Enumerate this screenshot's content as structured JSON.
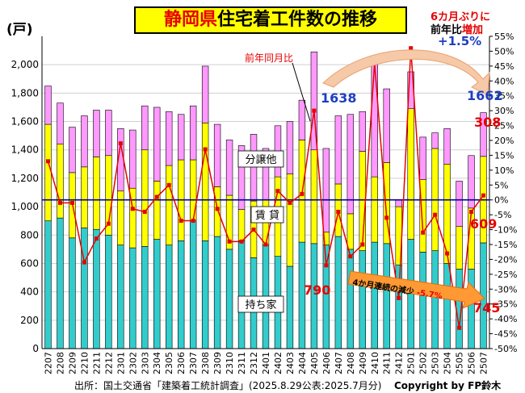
{
  "title": {
    "part1": "静岡県",
    "part2": "住宅着工件数の推移"
  },
  "unit_label": "(戸)",
  "callouts": {
    "six_month_line1": "6カ月ぶりに",
    "six_month_line2a": "前年比",
    "six_month_line2b": "増加",
    "six_month_pct": "+1.5%",
    "yoy_label": "前年同月比",
    "decline_label": "4か月連続の減少 ",
    "decline_pct": "-5.7%",
    "val_1638": "1638",
    "val_1662": "1662",
    "val_308": "308",
    "val_609": "609",
    "val_790": "790",
    "val_745": "745"
  },
  "source": "出所：国土交通省「建築着工統計調査」(2025.8.29公表:2025.7月分)",
  "copyright": "Copyright by FP鈴木",
  "colors": {
    "owned": "#33cccc",
    "rental": "#ffff00",
    "sale": "#ff99ff",
    "yoy_line": "#e60000",
    "zero_line": "#000099"
  },
  "chart_data": {
    "type": "bar",
    "stacked": true,
    "categories": [
      "2207",
      "2208",
      "2209",
      "2210",
      "2211",
      "2212",
      "2301",
      "2302",
      "2303",
      "2304",
      "2305",
      "2306",
      "2307",
      "2308",
      "2309",
      "2310",
      "2311",
      "2312",
      "2401",
      "2402",
      "2403",
      "2404",
      "2405",
      "2406",
      "2407",
      "2408",
      "2409",
      "2410",
      "2411",
      "2412",
      "2501",
      "2502",
      "2503",
      "2504",
      "2505",
      "2506",
      "2507"
    ],
    "x_tick_labels": [
      "2207",
      "2208",
      "2209",
      "2210",
      "2211",
      "2212",
      "2301",
      "2302",
      "2303",
      "2304",
      "2305",
      "2306",
      "2307",
      "2308",
      "2309",
      "2310",
      "2311",
      "2312",
      "2401",
      "2402",
      "2403",
      "2404",
      "2405",
      "2406",
      "2407",
      "2408",
      "2409",
      "2410",
      "2411",
      "2412",
      "2501",
      "2502",
      "2503",
      "2504",
      "2505",
      "2506",
      "2507"
    ],
    "series": [
      {
        "name": "持ち家",
        "values": [
          900,
          920,
          780,
          850,
          840,
          800,
          730,
          710,
          720,
          770,
          730,
          760,
          900,
          760,
          790,
          700,
          760,
          640,
          730,
          650,
          580,
          750,
          740,
          730,
          790,
          700,
          690,
          750,
          740,
          590,
          770,
          680,
          690,
          600,
          560,
          560,
          745
        ]
      },
      {
        "name": "賃 貸",
        "values": [
          680,
          520,
          460,
          430,
          510,
          560,
          380,
          420,
          680,
          410,
          560,
          570,
          430,
          830,
          350,
          380,
          220,
          400,
          320,
          560,
          650,
          720,
          660,
          90,
          370,
          250,
          700,
          460,
          570,
          410,
          920,
          510,
          720,
          700,
          300,
          430,
          609
        ]
      },
      {
        "name": "分譲他",
        "values": [
          270,
          290,
          320,
          360,
          330,
          320,
          440,
          410,
          310,
          520,
          380,
          320,
          380,
          400,
          440,
          390,
          450,
          470,
          360,
          360,
          370,
          280,
          690,
          590,
          480,
          700,
          280,
          850,
          520,
          50,
          260,
          300,
          110,
          250,
          320,
          370,
          308
        ]
      }
    ],
    "yoy_series": {
      "name": "前年同月比",
      "unit": "%",
      "values": [
        13,
        -1,
        -1,
        -21,
        -13,
        -8,
        19,
        -3,
        -4,
        1,
        5,
        -7,
        -7,
        17,
        -3,
        -14,
        -14,
        -10,
        -15,
        3,
        -1,
        2,
        30,
        -22,
        -4,
        -19,
        -15,
        46,
        -6,
        -33,
        51,
        -11,
        -5,
        -18,
        -43,
        -4,
        1.5
      ]
    },
    "ylim": [
      0,
      2200
    ],
    "y_ticks": [
      0,
      200,
      400,
      600,
      800,
      1000,
      1200,
      1400,
      1600,
      1800,
      2000
    ],
    "y_tick_labels": [
      "0",
      "200",
      "400",
      "600",
      "800",
      "1,000",
      "1,200",
      "1,400",
      "1,600",
      "1,800",
      "2,000"
    ],
    "y2lim": [
      -50,
      55
    ],
    "y2_ticks": [
      -50,
      -45,
      -40,
      -35,
      -30,
      -25,
      -20,
      -15,
      -10,
      -5,
      0,
      5,
      10,
      15,
      20,
      25,
      30,
      35,
      40,
      45,
      50,
      55
    ],
    "y2_tick_labels": [
      "-50%",
      "-45%",
      "-40%",
      "-35%",
      "-30%",
      "-25%",
      "-20%",
      "-15%",
      "-10%",
      "-5%",
      "0%",
      "5%",
      "10%",
      "15%",
      "20%",
      "25%",
      "30%",
      "35%",
      "40%",
      "45%",
      "50%",
      "55%"
    ],
    "segment_labels": [
      "分譲他",
      "賃 貸",
      "持ち家"
    ]
  }
}
